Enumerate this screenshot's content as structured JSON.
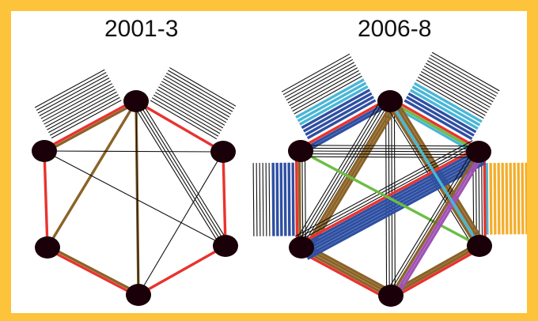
{
  "colors": {
    "frame": "#fdc33b",
    "panel": "#ffffff",
    "node": "#1a0008",
    "red": "#e8332f",
    "brown": "#8b6327",
    "black": "#111111",
    "dark_blue": "#2e4fa2",
    "light_blue": "#48b6d6",
    "green": "#6cbd45",
    "purple": "#a052b4",
    "orange": "#f3ae2c"
  },
  "graphs": [
    {
      "title": "2001-3",
      "nodes": [
        "top",
        "upper-right",
        "lower-right",
        "bottom",
        "lower-left",
        "upper-left"
      ],
      "edges": [
        {
          "a": 0,
          "b": 1,
          "colors": [
            "red"
          ]
        },
        {
          "a": 1,
          "b": 2,
          "colors": [
            "red"
          ]
        },
        {
          "a": 2,
          "b": 3,
          "colors": [
            "red"
          ]
        },
        {
          "a": 3,
          "b": 4,
          "colors": [
            "red",
            "brown"
          ]
        },
        {
          "a": 4,
          "b": 5,
          "colors": [
            "red"
          ]
        },
        {
          "a": 5,
          "b": 0,
          "colors": [
            "red",
            "brown"
          ]
        },
        {
          "a": 0,
          "b": 3,
          "colors": [
            "brown"
          ]
        },
        {
          "a": 0,
          "b": 4,
          "colors": [
            "brown"
          ]
        },
        {
          "a": 0,
          "b": 2,
          "colors": [
            "black",
            "black",
            "black",
            "black"
          ]
        },
        {
          "a": 0,
          "b": 3,
          "colors": [
            "black"
          ]
        },
        {
          "a": 5,
          "b": 1,
          "colors": [
            "black"
          ]
        },
        {
          "a": 5,
          "b": 2,
          "colors": [
            "black"
          ]
        },
        {
          "a": 1,
          "b": 3,
          "colors": [
            "black"
          ]
        }
      ],
      "stubs": [
        {
          "edge": [
            5,
            0
          ],
          "side": -1,
          "colors": [
            "black",
            "black",
            "black",
            "black",
            "black",
            "black",
            "black",
            "black",
            "black",
            "black",
            "black",
            "black"
          ]
        },
        {
          "edge": [
            0,
            1
          ],
          "side": -1,
          "colors": [
            "black",
            "black",
            "black",
            "black",
            "black",
            "black",
            "black",
            "black",
            "black",
            "black",
            "black",
            "black",
            "black"
          ]
        }
      ]
    },
    {
      "title": "2006-8",
      "nodes": [
        "top",
        "upper-right",
        "lower-right",
        "bottom",
        "lower-left",
        "upper-left"
      ],
      "edges": [
        {
          "a": 0,
          "b": 1,
          "colors": [
            "red",
            "green",
            "light_blue"
          ]
        },
        {
          "a": 1,
          "b": 2,
          "colors": [
            "red",
            "black",
            "black",
            "black",
            "black"
          ]
        },
        {
          "a": 2,
          "b": 3,
          "colors": [
            "red",
            "brown",
            "brown"
          ]
        },
        {
          "a": 3,
          "b": 4,
          "colors": [
            "red",
            "brown",
            "brown",
            "brown"
          ]
        },
        {
          "a": 4,
          "b": 5,
          "colors": [
            "red",
            "brown",
            "black",
            "black"
          ]
        },
        {
          "a": 5,
          "b": 0,
          "colors": [
            "red",
            "dark_blue",
            "dark_blue"
          ]
        },
        {
          "a": 0,
          "b": 3,
          "colors": [
            "black",
            "black",
            "black",
            "black"
          ]
        },
        {
          "a": 0,
          "b": 4,
          "colors": [
            "brown",
            "brown",
            "brown",
            "black",
            "black",
            "black",
            "black"
          ]
        },
        {
          "a": 0,
          "b": 2,
          "colors": [
            "brown",
            "brown",
            "brown",
            "brown",
            "black"
          ]
        },
        {
          "a": 1,
          "b": 4,
          "colors": [
            "dark_blue",
            "dark_blue",
            "dark_blue",
            "dark_blue",
            "dark_blue",
            "dark_blue",
            "red",
            "black",
            "black",
            "black"
          ]
        },
        {
          "a": 5,
          "b": 2,
          "colors": [
            "green"
          ]
        },
        {
          "a": 1,
          "b": 3,
          "colors": [
            "purple",
            "purple",
            "brown",
            "black",
            "black"
          ]
        },
        {
          "a": 5,
          "b": 1,
          "colors": [
            "black",
            "black",
            "black",
            "black",
            "black"
          ]
        },
        {
          "a": 0,
          "b": 2,
          "colors": [
            "light_blue"
          ]
        }
      ],
      "stubs": [
        {
          "edge": [
            5,
            0
          ],
          "side": -1,
          "colors": [
            "dark_blue",
            "dark_blue",
            "dark_blue",
            "dark_blue",
            "light_blue",
            "light_blue",
            "light_blue",
            "black",
            "black",
            "black",
            "black",
            "black",
            "black",
            "black",
            "black",
            "black"
          ]
        },
        {
          "edge": [
            0,
            1
          ],
          "side": -1,
          "colors": [
            "dark_blue",
            "dark_blue",
            "dark_blue",
            "light_blue",
            "light_blue",
            "light_blue",
            "black",
            "black",
            "black",
            "black",
            "black",
            "black",
            "black",
            "black",
            "black",
            "black",
            "black"
          ]
        },
        {
          "edge": [
            4,
            5
          ],
          "side": -1,
          "colors": [
            "dark_blue",
            "dark_blue",
            "dark_blue",
            "dark_blue",
            "dark_blue",
            "dark_blue",
            "black",
            "black",
            "black",
            "black",
            "black",
            "black"
          ]
        },
        {
          "edge": [
            1,
            2
          ],
          "side": -1,
          "colors": [
            "light_blue",
            "orange",
            "orange",
            "orange",
            "orange",
            "orange",
            "orange",
            "orange",
            "orange",
            "orange",
            "orange",
            "orange"
          ]
        }
      ]
    }
  ]
}
